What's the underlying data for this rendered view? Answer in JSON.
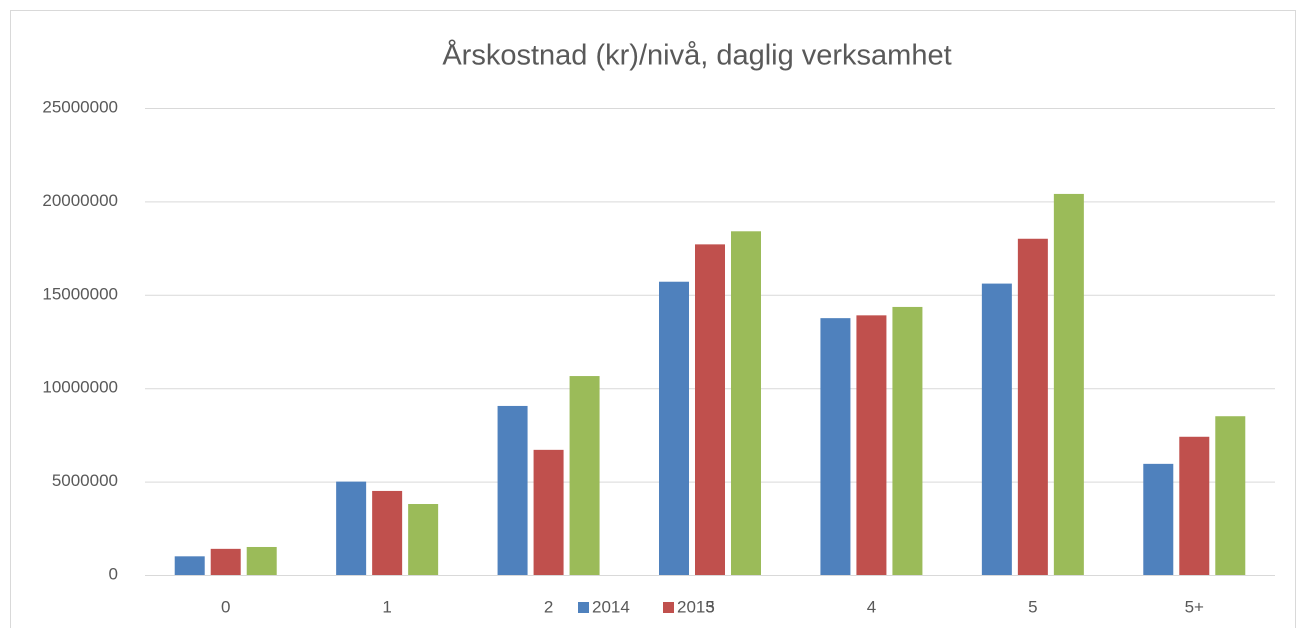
{
  "chart_data": {
    "type": "bar",
    "title": "Årskostnad (kr)/nivå, daglig verksamhet",
    "categories": [
      "0",
      "1",
      "2",
      "3",
      "4",
      "5",
      "5+"
    ],
    "series": [
      {
        "name": "2014",
        "color": "#4f81bd",
        "values": [
          1000000,
          5000000,
          9050000,
          15700000,
          13750000,
          15600000,
          5950000
        ]
      },
      {
        "name": "2015",
        "color": "#c0504d",
        "values": [
          1400000,
          4500000,
          6700000,
          17700000,
          13900000,
          18000000,
          7400000
        ]
      },
      {
        "color": "#9bbb59",
        "values": [
          1500000,
          3800000,
          10650000,
          18400000,
          14350000,
          20400000,
          8500000
        ]
      }
    ],
    "ylim": [
      0,
      25000000
    ],
    "yticks": [
      0,
      5000000,
      10000000,
      15000000,
      20000000,
      25000000
    ],
    "grid": true,
    "legend": "bottom"
  }
}
